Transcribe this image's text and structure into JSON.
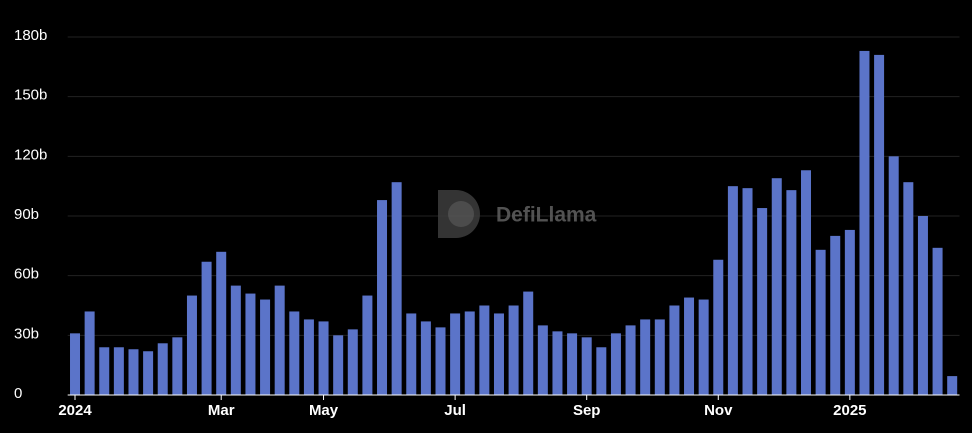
{
  "chart_data": {
    "type": "bar",
    "watermark": "DefiLlama",
    "categories": [
      "2024",
      null,
      null,
      null,
      null,
      null,
      null,
      null,
      null,
      null,
      "Mar",
      null,
      null,
      null,
      null,
      null,
      null,
      "May",
      null,
      null,
      null,
      null,
      null,
      null,
      null,
      null,
      "Jul",
      null,
      null,
      null,
      null,
      null,
      null,
      null,
      null,
      "Sep",
      null,
      null,
      null,
      null,
      null,
      null,
      null,
      null,
      "Nov",
      null,
      null,
      null,
      null,
      null,
      null,
      null,
      null,
      "2025",
      null,
      null,
      null,
      null,
      null,
      null,
      null
    ],
    "values": [
      31,
      42,
      24,
      24,
      23,
      22,
      26,
      29,
      50,
      67,
      72,
      55,
      51,
      48,
      55,
      42,
      38,
      37,
      30,
      33,
      50,
      98,
      107,
      41,
      37,
      34,
      41,
      42,
      45,
      41,
      45,
      52,
      35,
      32,
      31,
      29,
      24,
      31,
      35,
      38,
      38,
      45,
      49,
      48,
      68,
      105,
      104,
      94,
      109,
      103,
      113,
      73,
      80,
      83,
      173,
      171,
      120,
      107,
      90,
      74,
      9.5
    ],
    "color": "#5b74c9",
    "ylim": [
      0,
      180
    ],
    "yticks": [
      0,
      {
        "value": 30,
        "label": "30b"
      },
      {
        "value": 60,
        "label": "60b"
      },
      {
        "value": 90,
        "label": "90b"
      },
      {
        "value": 120,
        "label": "120b"
      },
      {
        "value": 150,
        "label": "150b"
      },
      {
        "value": 180,
        "label": "180b"
      }
    ],
    "grid": true
  }
}
